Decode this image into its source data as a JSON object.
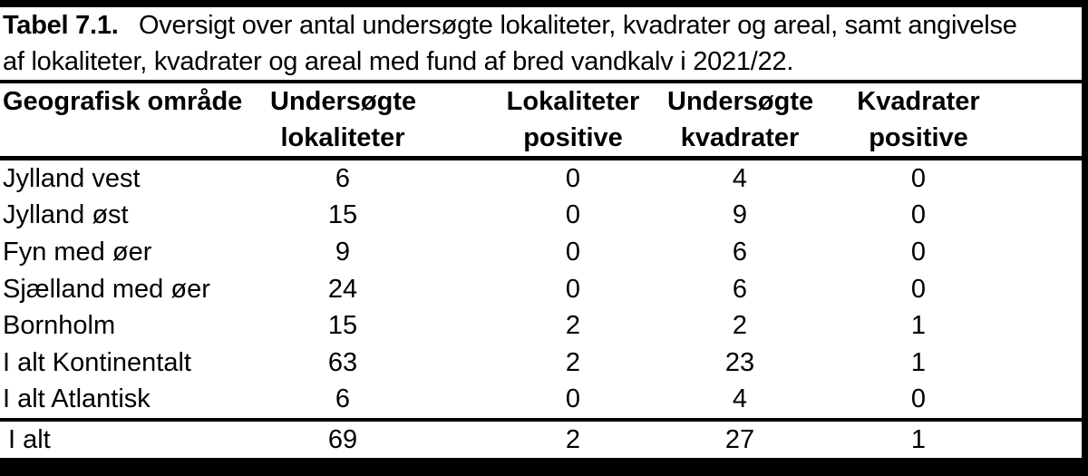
{
  "caption": {
    "label": "Tabel 7.1.",
    "line1": "Oversigt over antal undersøgte lokaliteter, kvadrater og areal, samt angivelse",
    "line2": "af lokaliteter, kvadrater og areal med fund af bred vandkalv i 2021/22."
  },
  "table": {
    "columns": [
      {
        "line1": "Geografisk område",
        "line2": ""
      },
      {
        "line1": "Undersøgte",
        "line2": "lokaliteter"
      },
      {
        "line1": "Lokaliteter",
        "line2": "positive"
      },
      {
        "line1": "Undersøgte",
        "line2": "kvadrater"
      },
      {
        "line1": "Kvadrater",
        "line2": "positive"
      }
    ],
    "rows": [
      {
        "area": "Jylland vest",
        "values": [
          "6",
          "0",
          "4",
          "0"
        ]
      },
      {
        "area": "Jylland øst",
        "values": [
          "15",
          "0",
          "9",
          "0"
        ]
      },
      {
        "area": "Fyn med øer",
        "values": [
          "9",
          "0",
          "6",
          "0"
        ]
      },
      {
        "area": "Sjælland med øer",
        "values": [
          "24",
          "0",
          "6",
          "0"
        ]
      },
      {
        "area": "Bornholm",
        "values": [
          "15",
          "2",
          "2",
          "1"
        ]
      },
      {
        "area": "I alt Kontinentalt",
        "values": [
          "63",
          "2",
          "23",
          "1"
        ]
      },
      {
        "area": "I alt Atlantisk",
        "values": [
          "6",
          "0",
          "4",
          "0"
        ]
      }
    ],
    "total_row": {
      "area": "I alt",
      "values": [
        "69",
        "2",
        "27",
        "1"
      ]
    }
  },
  "colors": {
    "text": "#000000",
    "background": "#ffffff",
    "border": "#000000"
  }
}
